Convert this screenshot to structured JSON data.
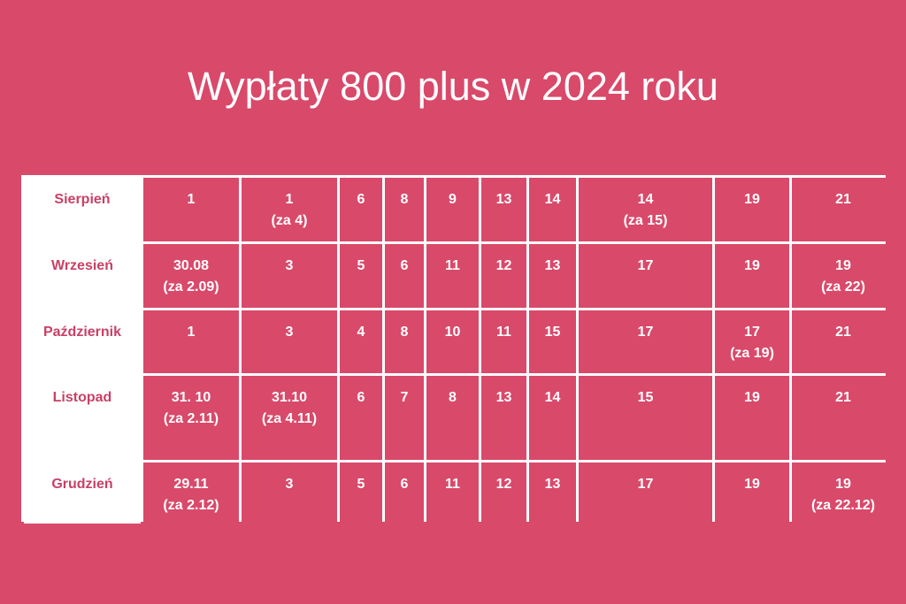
{
  "title": "Wypłaty 800 plus w 2024 roku",
  "colors": {
    "background": "#d9496a",
    "grid": "#ffffff",
    "label_text": "#c94066"
  },
  "rows": [
    {
      "month": "Sierpień",
      "cells": [
        [
          "1",
          ""
        ],
        [
          "1",
          "(za 4)"
        ],
        [
          "6",
          ""
        ],
        [
          "8",
          ""
        ],
        [
          "9",
          ""
        ],
        [
          "13",
          ""
        ],
        [
          "14",
          ""
        ],
        [
          "14",
          "(za 15)"
        ],
        [
          "19",
          ""
        ],
        [
          "21",
          ""
        ]
      ]
    },
    {
      "month": "Wrzesień",
      "cells": [
        [
          "30.08",
          "(za 2.09)"
        ],
        [
          "3",
          ""
        ],
        [
          "5",
          ""
        ],
        [
          "6",
          ""
        ],
        [
          "11",
          ""
        ],
        [
          "12",
          ""
        ],
        [
          "13",
          ""
        ],
        [
          "17",
          ""
        ],
        [
          "19",
          ""
        ],
        [
          "19",
          "(za 22)"
        ]
      ]
    },
    {
      "month": "Październik",
      "cells": [
        [
          "1",
          ""
        ],
        [
          "3",
          ""
        ],
        [
          "4",
          ""
        ],
        [
          "8",
          ""
        ],
        [
          "10",
          ""
        ],
        [
          "11",
          ""
        ],
        [
          "15",
          ""
        ],
        [
          "17",
          ""
        ],
        [
          "17",
          "(za 19)"
        ],
        [
          "21",
          ""
        ]
      ]
    },
    {
      "month": "Listopad",
      "cells": [
        [
          "31. 10",
          "(za 2.11)"
        ],
        [
          "31.10",
          "(za 4.11)"
        ],
        [
          "6",
          ""
        ],
        [
          "7",
          ""
        ],
        [
          "8",
          ""
        ],
        [
          "13",
          ""
        ],
        [
          "14",
          ""
        ],
        [
          "15",
          ""
        ],
        [
          "19",
          ""
        ],
        [
          "21",
          ""
        ]
      ]
    },
    {
      "month": "Grudzień",
      "cells": [
        [
          "29.11",
          "(za 2.12)"
        ],
        [
          "3",
          ""
        ],
        [
          "5",
          ""
        ],
        [
          "6",
          ""
        ],
        [
          "11",
          ""
        ],
        [
          "12",
          ""
        ],
        [
          "13",
          ""
        ],
        [
          "17",
          ""
        ],
        [
          "19",
          ""
        ],
        [
          "19",
          "(za 22.12)"
        ]
      ]
    }
  ]
}
